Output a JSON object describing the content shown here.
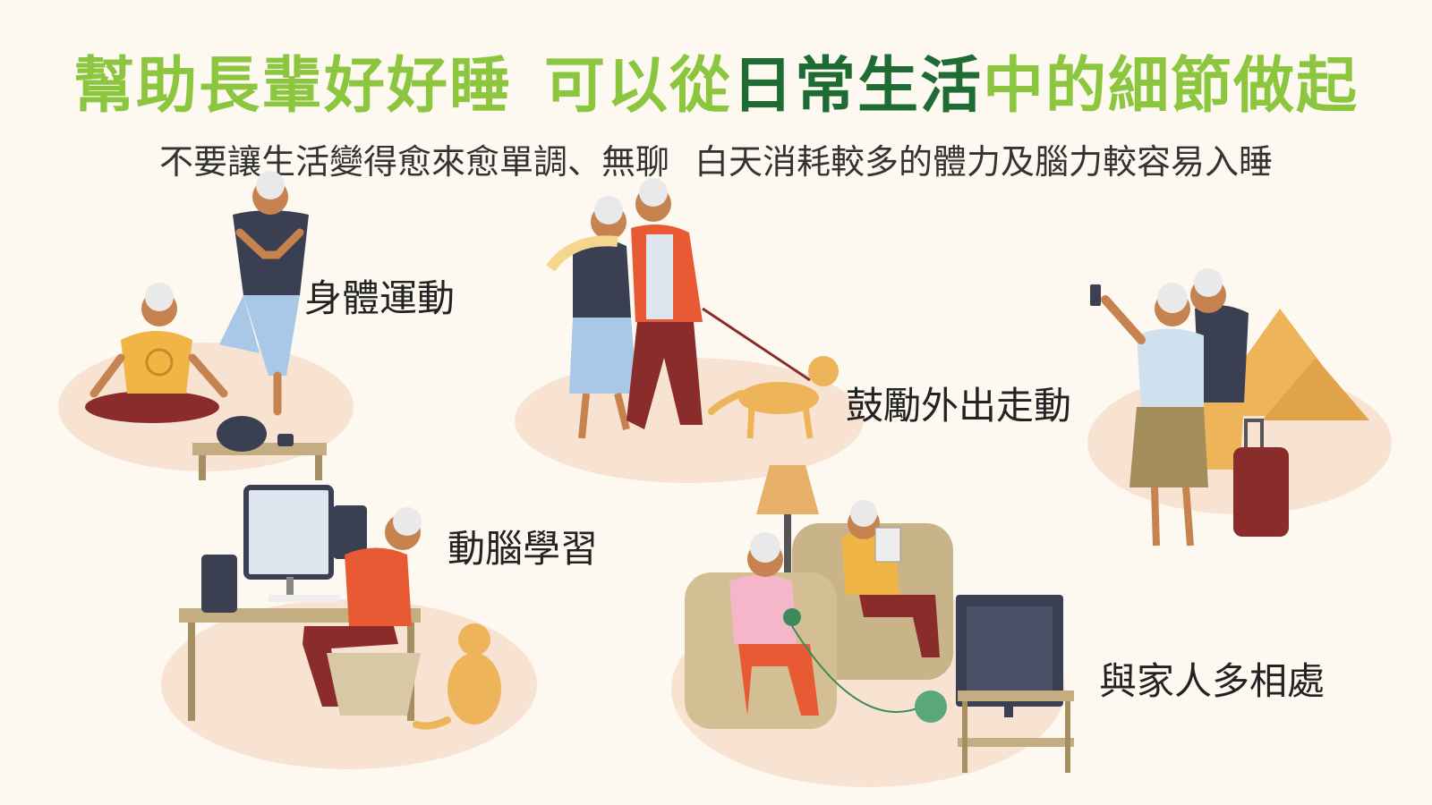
{
  "title": {
    "part1": "幫助長輩好好睡",
    "part2_prefix": "可以從",
    "part2_highlight": "日常生活",
    "part2_suffix": "中的細節做起"
  },
  "subtitle": {
    "left": "不要讓生活變得愈來愈單調、無聊",
    "right": "白天消耗較多的體力及腦力較容易入睡"
  },
  "activities": {
    "exercise": "身體運動",
    "go_out": "鼓勵外出走動",
    "brain": "動腦學習",
    "family": "與家人多相處"
  },
  "colors": {
    "title_green": "#8cc63f",
    "title_dark_green": "#1f6b34",
    "blob": "#f8e3d3",
    "background": "#fdf9f1"
  }
}
